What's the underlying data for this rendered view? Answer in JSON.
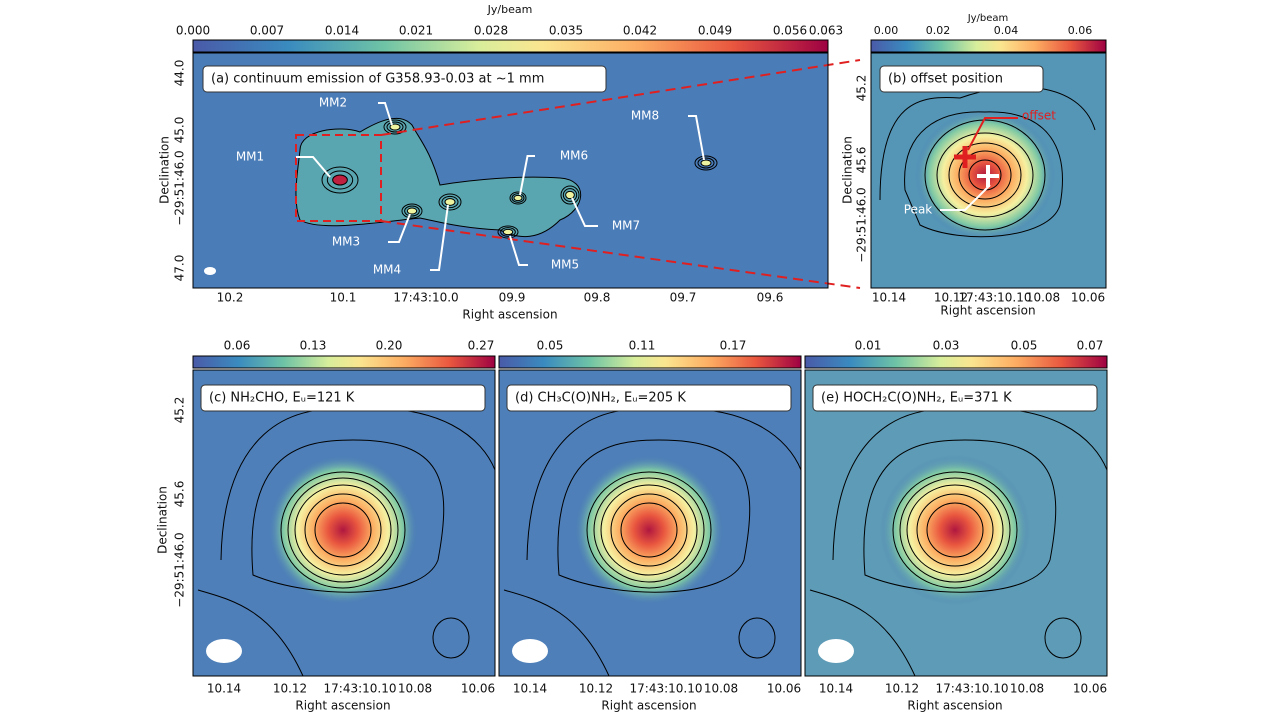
{
  "panel_a": {
    "label": "(a) continuum emission of G358.93-0.03 at ~1 mm",
    "colorbar_label": "Jy/beam",
    "colorbar_ticks": [
      "0.000",
      "0.007",
      "0.014",
      "0.021",
      "0.028",
      "0.035",
      "0.042",
      "0.049",
      "0.056",
      "0.063"
    ],
    "y_ticks": [
      "44.0",
      "45.0",
      "−29:51:46.0",
      "47.0"
    ],
    "x_ticks": [
      "10.2",
      "10.1",
      "17:43:10.0",
      "09.9",
      "09.8",
      "09.7",
      "09.6"
    ],
    "x_label": "Right ascension",
    "y_label": "Declination",
    "sources": [
      "MM1",
      "MM2",
      "MM3",
      "MM4",
      "MM5",
      "MM6",
      "MM7",
      "MM8"
    ]
  },
  "panel_b": {
    "label": "(b) offset position",
    "colorbar_label": "Jy/beam",
    "colorbar_ticks": [
      "0.00",
      "0.02",
      "0.04",
      "0.06"
    ],
    "y_ticks": [
      "45.2",
      "45.6",
      "−29:51:46.0"
    ],
    "x_ticks": [
      "10.14",
      "10.12",
      "17:43:10.10",
      "10.08",
      "10.06"
    ],
    "x_label": "Right ascension",
    "y_label": "Declination",
    "annotations": [
      "offset",
      "Peak"
    ]
  },
  "bottom": {
    "y_ticks": [
      "45.2",
      "45.6",
      "−29:51:46.0"
    ],
    "x_ticks": [
      "10.14",
      "10.12",
      "17:43:10.10",
      "10.08",
      "10.06"
    ],
    "x_label": "Right ascension",
    "y_label": "Declination",
    "panels": [
      {
        "label": "(c) NH₂CHO, Eᵤ=121 K",
        "colorbar_ticks": [
          "0.06",
          "0.13",
          "0.20",
          "0.27"
        ]
      },
      {
        "label": "(d) CH₃C(O)NH₂, Eᵤ=205 K",
        "colorbar_ticks": [
          "0.05",
          "0.11",
          "0.17"
        ]
      },
      {
        "label": "(e) HOCH₂C(O)NH₂, Eᵤ=371 K",
        "colorbar_ticks": [
          "0.01",
          "0.03",
          "0.05",
          "0.07"
        ]
      }
    ]
  }
}
